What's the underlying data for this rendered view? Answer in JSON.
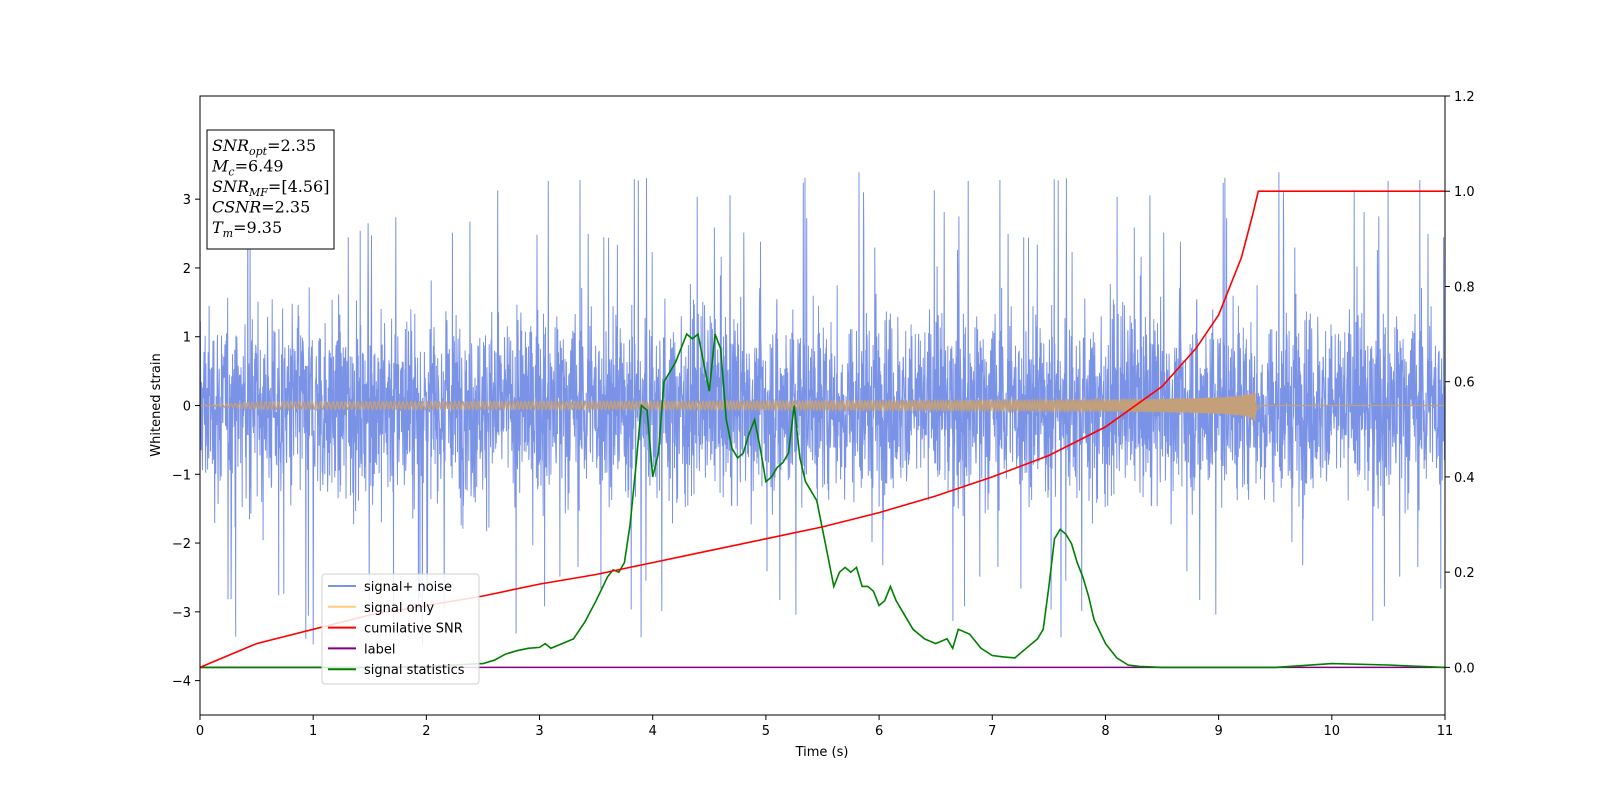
{
  "chart_data": {
    "type": "line",
    "xlabel": "Time (s)",
    "ylabel": "Whitened strain",
    "xlim": [
      0,
      11
    ],
    "ylim": [
      -4.5,
      4.5
    ],
    "y2lim": [
      -0.1,
      1.2
    ],
    "xticks": [
      "0",
      "1",
      "2",
      "3",
      "4",
      "5",
      "6",
      "7",
      "8",
      "9",
      "10",
      "11"
    ],
    "yticks": [
      "−4",
      "−3",
      "−2",
      "−1",
      "0",
      "1",
      "2",
      "3"
    ],
    "y2ticks": [
      "0.0",
      "0.2",
      "0.4",
      "0.6",
      "0.8",
      "1.0",
      "1.2"
    ],
    "grid": false,
    "legend_position": "lower-left",
    "colors": {
      "noise": "#7b93e6",
      "signal": "#c4a07a",
      "cumulative": "#ff0000",
      "label": "#800080",
      "statistics": "#008000"
    },
    "annotation": [
      {
        "main": "SNR",
        "sub": "opt",
        "value": "=2.35"
      },
      {
        "main": "M",
        "sub": "c",
        "value": "=6.49"
      },
      {
        "main": "SNR",
        "sub": "MF",
        "value": "=[4.56]"
      },
      {
        "main": "CSNR",
        "sub": "",
        "value": "=2.35"
      },
      {
        "main": "T",
        "sub": "m",
        "value": "=9.35"
      }
    ],
    "series": [
      {
        "name": "signal+ noise",
        "axis": "left",
        "style": "noise",
        "amplitude_envelope": 3.5
      },
      {
        "name": "signal only",
        "axis": "left",
        "style": "chirp",
        "chirp_end_time": 9.35,
        "chirp_peak_amplitude": 0.25
      },
      {
        "name": "cumilative SNR",
        "axis": "right",
        "x": [
          0,
          0.5,
          1,
          1.5,
          2,
          2.5,
          3,
          3.5,
          4,
          4.5,
          5,
          5.5,
          6,
          6.5,
          7,
          7.5,
          8,
          8.5,
          8.8,
          9.0,
          9.2,
          9.3,
          9.35,
          11
        ],
        "y": [
          0.0,
          0.05,
          0.08,
          0.11,
          0.13,
          0.15,
          0.175,
          0.195,
          0.22,
          0.245,
          0.27,
          0.295,
          0.325,
          0.36,
          0.4,
          0.445,
          0.505,
          0.59,
          0.67,
          0.74,
          0.86,
          0.95,
          1.0,
          1.0
        ]
      },
      {
        "name": "label",
        "axis": "right",
        "x": [
          0,
          11
        ],
        "y": [
          0,
          0
        ]
      },
      {
        "name": "signal statistics",
        "axis": "right",
        "x": [
          0,
          0.5,
          1,
          1.5,
          2,
          2.5,
          2.6,
          2.7,
          2.8,
          2.9,
          3.0,
          3.05,
          3.1,
          3.2,
          3.3,
          3.4,
          3.5,
          3.6,
          3.65,
          3.7,
          3.75,
          3.8,
          3.85,
          3.9,
          3.95,
          4.0,
          4.05,
          4.1,
          4.15,
          4.2,
          4.3,
          4.35,
          4.4,
          4.5,
          4.55,
          4.6,
          4.65,
          4.7,
          4.75,
          4.8,
          4.85,
          4.9,
          4.95,
          5.0,
          5.05,
          5.1,
          5.15,
          5.2,
          5.25,
          5.3,
          5.35,
          5.4,
          5.45,
          5.5,
          5.55,
          5.6,
          5.65,
          5.7,
          5.75,
          5.8,
          5.85,
          5.9,
          5.95,
          6.0,
          6.05,
          6.1,
          6.15,
          6.2,
          6.3,
          6.4,
          6.5,
          6.6,
          6.65,
          6.7,
          6.8,
          6.9,
          7.0,
          7.1,
          7.2,
          7.3,
          7.4,
          7.45,
          7.5,
          7.55,
          7.6,
          7.65,
          7.7,
          7.75,
          7.8,
          7.85,
          7.9,
          8.0,
          8.1,
          8.2,
          8.3,
          8.5,
          9,
          9.5,
          10,
          10.5,
          11
        ],
        "y": [
          0.0,
          0.0,
          0.0,
          0.0,
          0.002,
          0.008,
          0.015,
          0.028,
          0.035,
          0.04,
          0.042,
          0.05,
          0.04,
          0.05,
          0.06,
          0.095,
          0.14,
          0.19,
          0.205,
          0.2,
          0.22,
          0.3,
          0.42,
          0.55,
          0.54,
          0.4,
          0.45,
          0.6,
          0.62,
          0.64,
          0.7,
          0.69,
          0.7,
          0.58,
          0.7,
          0.67,
          0.52,
          0.46,
          0.44,
          0.45,
          0.49,
          0.52,
          0.46,
          0.39,
          0.4,
          0.42,
          0.43,
          0.45,
          0.55,
          0.44,
          0.39,
          0.37,
          0.35,
          0.29,
          0.23,
          0.17,
          0.2,
          0.21,
          0.2,
          0.21,
          0.17,
          0.17,
          0.16,
          0.13,
          0.14,
          0.17,
          0.14,
          0.12,
          0.08,
          0.06,
          0.05,
          0.06,
          0.04,
          0.08,
          0.07,
          0.04,
          0.025,
          0.022,
          0.02,
          0.04,
          0.06,
          0.08,
          0.17,
          0.27,
          0.29,
          0.28,
          0.26,
          0.22,
          0.19,
          0.15,
          0.1,
          0.05,
          0.02,
          0.005,
          0.002,
          0.0,
          0.0,
          0.0,
          0.008,
          0.005,
          0.0
        ]
      }
    ]
  }
}
